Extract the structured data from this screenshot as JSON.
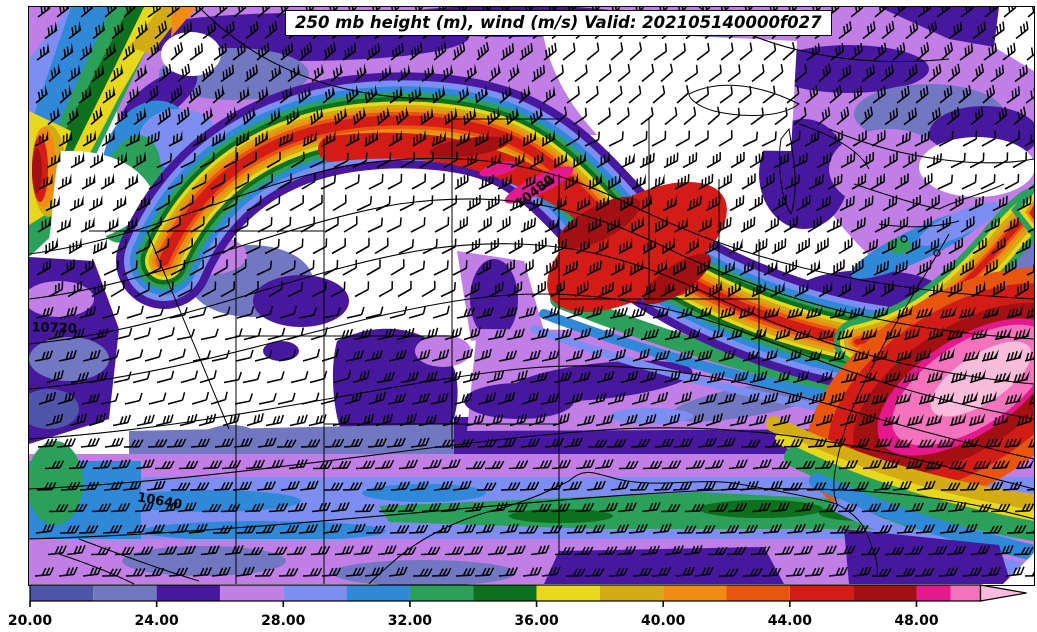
{
  "chart_data": {
    "type": "heatmap",
    "title": "250 mb height (m), wind (m/s) Valid: 202105140000f027",
    "variable": "250 mb wind speed (m/s, color shaded), geopotential height (m, black contours), wind barbs",
    "valid_time": "202105140000f027",
    "map_region": "Continental United States",
    "grid": "off",
    "contour_labels": [
      {
        "text": "10480"
      },
      {
        "text": "10640"
      },
      {
        "text": "10720"
      }
    ],
    "colorbar": {
      "orientation": "horizontal",
      "position": "bottom",
      "range": [
        20,
        52
      ],
      "extend": "max",
      "tick_labels": [
        "20.00",
        "24.00",
        "28.00",
        "32.00",
        "36.00",
        "40.00",
        "44.00",
        "48.00"
      ],
      "bands": [
        {
          "from": 20,
          "to": 22,
          "color": "#4f55a8"
        },
        {
          "from": 22,
          "to": 24,
          "color": "#7277c2"
        },
        {
          "from": 24,
          "to": 26,
          "color": "#47189d"
        },
        {
          "from": 26,
          "to": 28,
          "color": "#c07ee6"
        },
        {
          "from": 28,
          "to": 30,
          "color": "#7d8ef2"
        },
        {
          "from": 30,
          "to": 32,
          "color": "#2f88d8"
        },
        {
          "from": 32,
          "to": 34,
          "color": "#2aa05a"
        },
        {
          "from": 34,
          "to": 36,
          "color": "#0c701c"
        },
        {
          "from": 36,
          "to": 38,
          "color": "#e8d81c"
        },
        {
          "from": 38,
          "to": 40,
          "color": "#d2ac12"
        },
        {
          "from": 40,
          "to": 42,
          "color": "#f28a14"
        },
        {
          "from": 42,
          "to": 44,
          "color": "#e8560e"
        },
        {
          "from": 44,
          "to": 46,
          "color": "#d41c16"
        },
        {
          "from": 46,
          "to": 48,
          "color": "#a31013"
        },
        {
          "from": 48,
          "to": 50,
          "color": "#e6188e"
        },
        {
          "from": 50,
          "to": 52,
          "color": "#f573bd"
        }
      ],
      "extend_color": "#f9bcdd"
    },
    "wind_barb_color": "#000000",
    "contour_color": "#000000"
  }
}
